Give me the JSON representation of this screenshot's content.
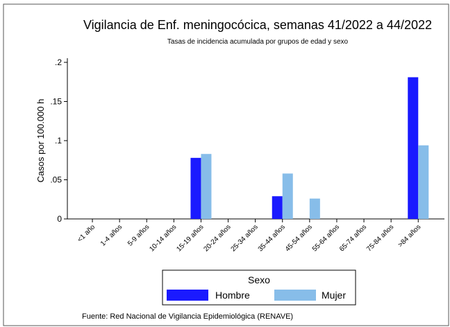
{
  "chart_data": {
    "type": "bar",
    "title": "Vigilancia de Enf. meningocócica, semanas 41/2022 a 44/2022",
    "subtitle": "Tasas de incidencia acumulada por grupos de edad y sexo",
    "y_label": "Casos por 100.000 h",
    "categories": [
      "<1 año",
      "1-4 años",
      "5-9 años",
      "10-14 años",
      "15-19 años",
      "20-24 años",
      "25-34 años",
      "35-44 años",
      "45-54 años",
      "55-64 años",
      "65-74 años",
      "75-84 años",
      ">84 años"
    ],
    "series": [
      {
        "name": "Hombre",
        "color": "#1a1aff",
        "values": [
          0,
          0,
          0,
          0,
          0.078,
          0,
          0,
          0.029,
          0,
          0,
          0,
          0,
          0.181
        ]
      },
      {
        "name": "Mujer",
        "color": "#87bde9",
        "values": [
          0,
          0,
          0,
          0,
          0.083,
          0,
          0,
          0.058,
          0.026,
          0,
          0,
          0,
          0.094
        ]
      }
    ],
    "ylim": [
      0,
      0.2
    ],
    "yticks": [
      0,
      {
        "value": 0.05,
        "label": ".05"
      },
      {
        "value": 0.1,
        "label": ".1"
      },
      {
        "value": 0.15,
        "label": ".15"
      },
      {
        "value": 0.2,
        "label": ".2"
      }
    ],
    "legend_title": "Sexo",
    "source": "Fuente: Red Nacional de Vigilancia Epidemiológica (RENAVE)"
  }
}
